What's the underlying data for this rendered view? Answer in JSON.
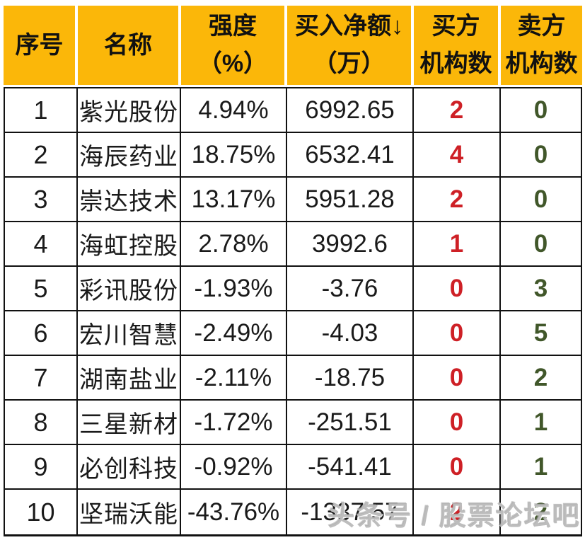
{
  "chart_data": {
    "type": "table",
    "columns": [
      {
        "id": "index",
        "lines": [
          "序号"
        ]
      },
      {
        "id": "name",
        "lines": [
          "名称"
        ]
      },
      {
        "id": "strength",
        "lines": [
          "强度",
          "（%）"
        ]
      },
      {
        "id": "net_buy",
        "lines": [
          "买入净额↓",
          "（万）"
        ]
      },
      {
        "id": "buy_inst",
        "lines": [
          "买方",
          "机构数"
        ]
      },
      {
        "id": "sell_inst",
        "lines": [
          "卖方",
          "机构数"
        ]
      }
    ],
    "rows": [
      [
        "1",
        "紫光股份",
        "4.94%",
        "6992.65",
        "2",
        "0"
      ],
      [
        "2",
        "海辰药业",
        "18.75%",
        "6532.41",
        "4",
        "0"
      ],
      [
        "3",
        "崇达技术",
        "13.17%",
        "5951.28",
        "2",
        "0"
      ],
      [
        "4",
        "海虹控股",
        "2.78%",
        "3992.6",
        "1",
        "0"
      ],
      [
        "5",
        "彩讯股份",
        "-1.93%",
        "-3.76",
        "0",
        "3"
      ],
      [
        "6",
        "宏川智慧",
        "-2.49%",
        "-4.03",
        "0",
        "5"
      ],
      [
        "7",
        "湖南盐业",
        "-2.11%",
        "-18.75",
        "0",
        "2"
      ],
      [
        "8",
        "三星新材",
        "-1.72%",
        "-251.51",
        "0",
        "1"
      ],
      [
        "9",
        "必创科技",
        "-0.92%",
        "-541.41",
        "0",
        "1"
      ],
      [
        "10",
        "坚瑞沃能",
        "-43.76%",
        "-1337.57",
        "2",
        "2"
      ]
    ]
  },
  "watermark": {
    "text": "头条号 / 股票论坛吧"
  },
  "icons": {
    "sort_descending": "↓"
  },
  "colors": {
    "header_bg": "#FBB709",
    "header_text": "#111111",
    "buy_count": "#CE2026",
    "sell_count": "#41572A",
    "body_text": "#1A1A1A",
    "grid_line": "#111111",
    "header_divider": "#FFFFFF",
    "background": "#FFFFFF"
  }
}
